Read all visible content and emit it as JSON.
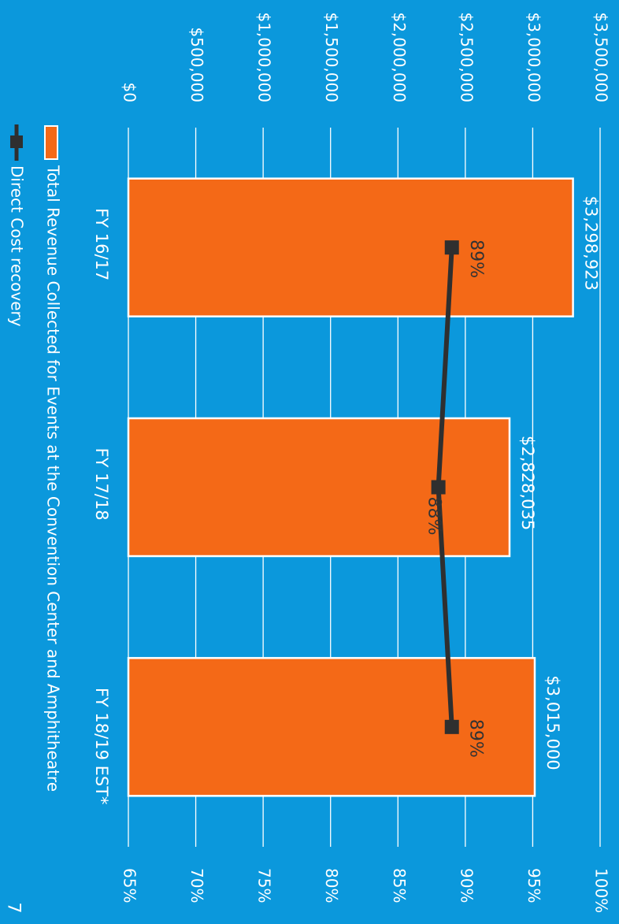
{
  "slide": {
    "page_number": "7"
  },
  "colors": {
    "background": "#0b98dc",
    "bar": "#f46917",
    "bar_outline": "#ffffff",
    "line": "#2f2f2f",
    "text": "#ffffff",
    "line_label": "#333333",
    "grid": "#ffffff"
  },
  "chart_data": {
    "type": "bar",
    "orientation": "rotated 90deg clockwise",
    "categories": [
      "FY 16/17",
      "FY 17/18",
      "FY 18/19 EST*"
    ],
    "series": [
      {
        "name": "Total Revenue Collected for Events at the Convention Center and Amphitheatre",
        "type": "bar",
        "axis": "primary",
        "values": [
          3298923,
          2828035,
          3015000
        ],
        "value_labels": [
          "$3,298,923",
          "$2,828,035",
          "$3,015,000"
        ]
      },
      {
        "name": "Direct Cost recovery",
        "type": "line",
        "axis": "secondary",
        "values": [
          89,
          88,
          89
        ],
        "value_labels": [
          "89%",
          "88%",
          "89%"
        ]
      }
    ],
    "primary_axis": {
      "ylim": [
        0,
        3500000
      ],
      "ticks": [
        0,
        500000,
        1000000,
        1500000,
        2000000,
        2500000,
        3000000,
        3500000
      ],
      "tick_labels": [
        "$0",
        "$500,000",
        "$1,000,000",
        "$1,500,000",
        "$2,000,000",
        "$2,500,000",
        "$3,000,000",
        "$3,500,000"
      ]
    },
    "secondary_axis": {
      "ylim": [
        65,
        100
      ],
      "ticks": [
        65,
        70,
        75,
        80,
        85,
        90,
        95,
        100
      ],
      "tick_labels": [
        "65%",
        "70%",
        "75%",
        "80%",
        "85%",
        "90%",
        "95%",
        "100%"
      ]
    },
    "grid": true,
    "legend_position": "left"
  }
}
